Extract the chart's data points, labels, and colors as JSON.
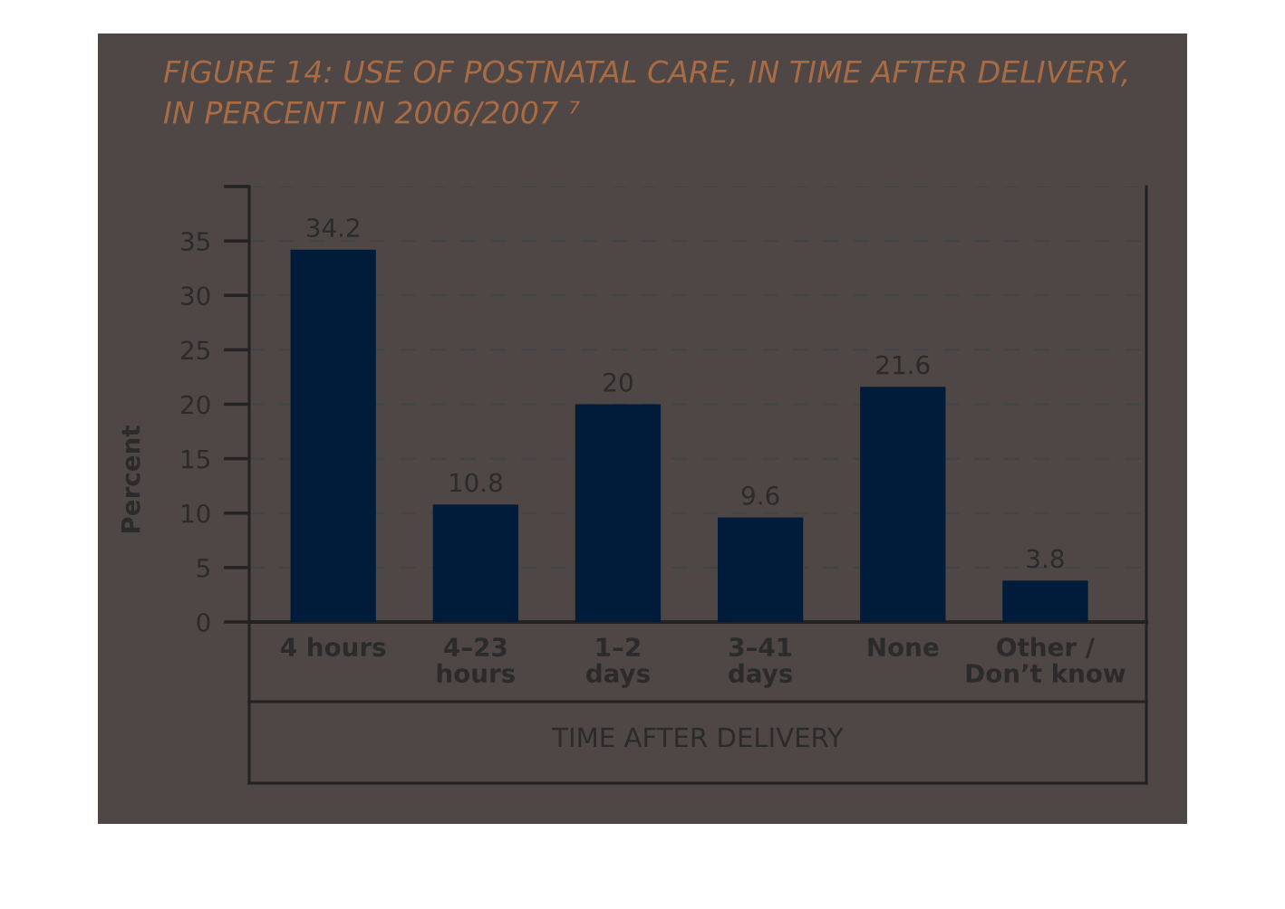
{
  "chart_data": {
    "type": "bar",
    "title": "FIGURE 14: USE OF POSTNATAL CARE, IN TIME AFTER DELIVERY,\nIN PERCENT IN 2006/2007 ⁷",
    "xlabel": "TIME AFTER DELIVERY",
    "ylabel": "Percent",
    "categories": [
      "4 hours",
      "4–23\nhours",
      "1–2\ndays",
      "3–41\ndays",
      "None",
      "Other /\nDon’t know"
    ],
    "values": [
      34.2,
      10.8,
      20,
      9.6,
      21.6,
      3.8
    ],
    "color": "#011c3b",
    "ylim": [
      0,
      40
    ],
    "yticks": [
      0,
      5,
      10,
      15,
      20,
      25,
      30,
      35,
      {
        "value": 40,
        "label": null
      }
    ],
    "grid": "y",
    "data_labels": true
  }
}
